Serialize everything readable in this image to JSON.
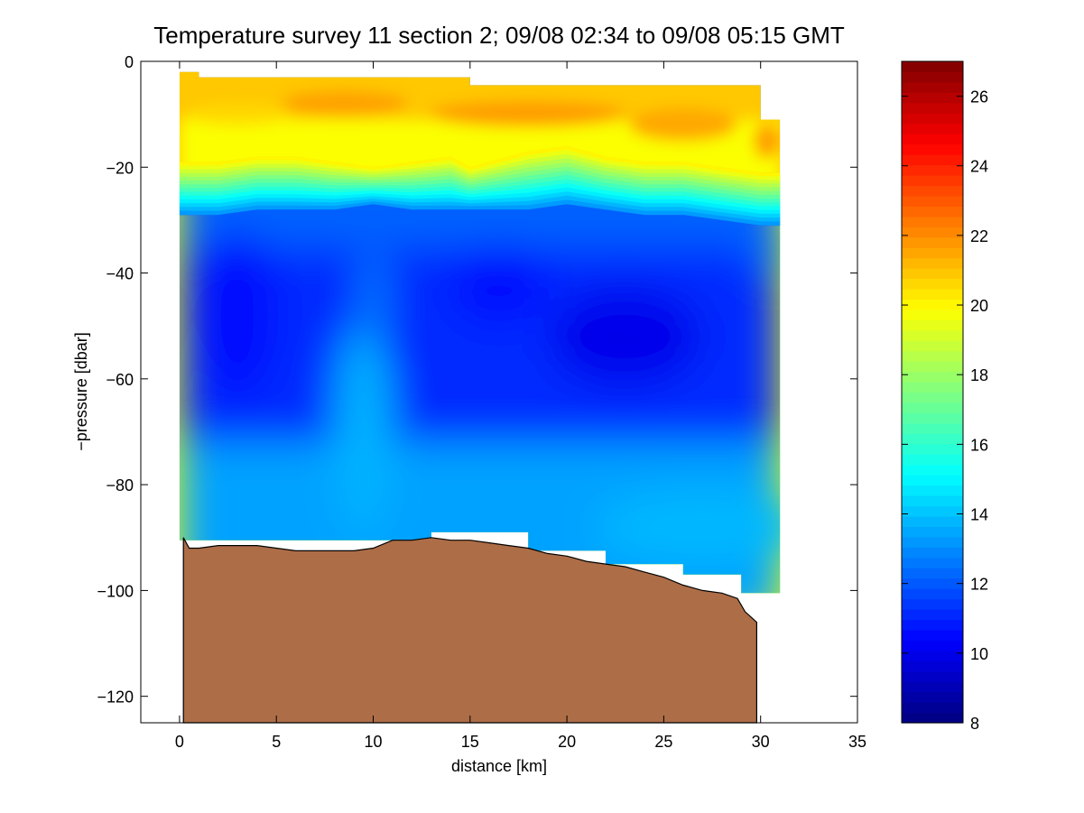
{
  "chart_data": {
    "type": "heatmap",
    "title": "Temperature survey 11 section 2; 09/08 02:34 to 09/08 05:15 GMT",
    "xlabel": "distance [km]",
    "ylabel": "−pressure [dbar]",
    "xlim": [
      -2,
      35
    ],
    "ylim": [
      -125,
      0
    ],
    "xticks": [
      0,
      5,
      10,
      15,
      20,
      25,
      30,
      35
    ],
    "yticks": [
      0,
      -20,
      -40,
      -60,
      -80,
      -100,
      -120
    ],
    "xtick_labels": [
      "0",
      "5",
      "10",
      "15",
      "20",
      "25",
      "30",
      "35"
    ],
    "ytick_labels": [
      "0",
      "−20",
      "−40",
      "−60",
      "−80",
      "−100",
      "−120"
    ],
    "colorbar": {
      "clim": [
        8,
        27
      ],
      "ticks": [
        8,
        10,
        12,
        14,
        16,
        18,
        20,
        22,
        24,
        26
      ],
      "tick_labels": [
        "8",
        "10",
        "12",
        "14",
        "16",
        "18",
        "20",
        "22",
        "24",
        "26"
      ],
      "colormap": "jet"
    },
    "thermocline": {
      "x": [
        0,
        2,
        4,
        6,
        8,
        10,
        12,
        14,
        15,
        16,
        18,
        20,
        22,
        24,
        26,
        28,
        30,
        31
      ],
      "warm_base": [
        -19,
        -19,
        -18,
        -18,
        -19,
        -20,
        -19,
        -18,
        -20,
        -19,
        -17,
        -16,
        -18,
        -19,
        -19,
        -20,
        -21,
        -21
      ],
      "cold_top": [
        -29,
        -29,
        -28,
        -28,
        -28,
        -27,
        -28,
        -28,
        -28,
        -28,
        -28,
        -27,
        -28,
        -29,
        -29,
        -30,
        -31,
        -31
      ]
    },
    "surface_temperatures": {
      "min": 20.5,
      "max": 21.7
    },
    "subsurface_temperatures": {
      "min": 10.0,
      "max": 14.0
    },
    "bathymetry": {
      "color": "#ad6d47",
      "x": [
        0.2,
        0.5,
        1,
        2,
        3,
        4,
        5,
        6,
        7,
        8,
        9,
        10,
        11,
        12,
        13,
        14,
        15,
        16,
        17,
        18,
        19,
        20,
        21,
        22,
        23,
        24,
        25,
        26,
        27,
        28,
        28.8,
        29.2,
        29.8
      ],
      "depth": [
        -90,
        -92,
        -92,
        -91.5,
        -91.5,
        -91.5,
        -92,
        -92.5,
        -92.5,
        -92.5,
        -92.5,
        -92,
        -90.5,
        -90.5,
        -90,
        -90.5,
        -90.5,
        -91,
        -91.5,
        -92,
        -93,
        -93.5,
        -94.5,
        -95,
        -95.5,
        -96.5,
        -97.5,
        -99,
        -100,
        -100.5,
        -101.5,
        -104,
        -106
      ]
    }
  }
}
